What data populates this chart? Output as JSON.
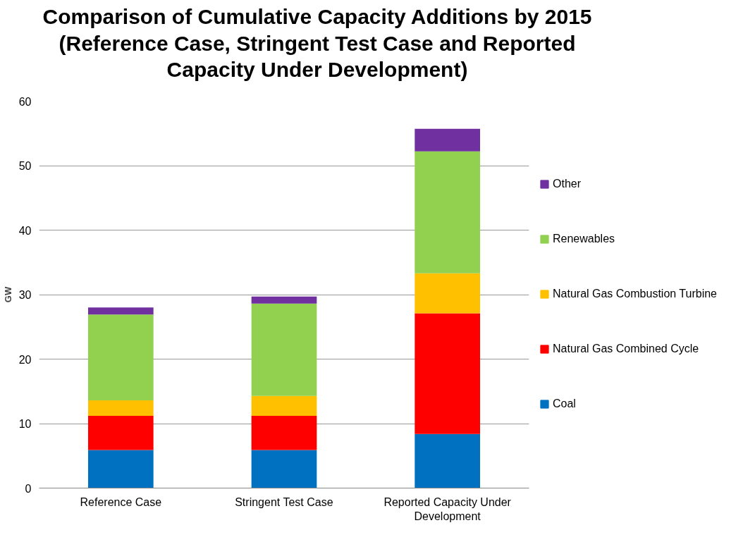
{
  "chart_data": {
    "type": "bar",
    "title": "Comparison of Cumulative Capacity Additions by 2015\n(Reference Case, Stringent Test Case and Reported\nCapacity Under Development)",
    "ylabel": "GW",
    "categories": [
      "Reference Case",
      "Stringent Test Case",
      "Reported Capacity Under Development"
    ],
    "stacked": true,
    "series": [
      {
        "name": "Coal",
        "color": "#0070c0",
        "values": [
          5.9,
          5.9,
          8.4
        ]
      },
      {
        "name": "Natural Gas Combined Cycle",
        "color": "#ff0000",
        "values": [
          5.3,
          5.3,
          18.7
        ]
      },
      {
        "name": "Natural Gas Combustion Turbine",
        "color": "#ffc000",
        "values": [
          2.4,
          3.1,
          6.2
        ]
      },
      {
        "name": "Renewables",
        "color": "#92d050",
        "values": [
          13.3,
          14.3,
          18.9
        ]
      },
      {
        "name": "Other",
        "color": "#7030a0",
        "values": [
          1.1,
          1.1,
          3.5
        ]
      }
    ],
    "ylim": [
      0,
      60
    ],
    "yticks": [
      0,
      10,
      20,
      30,
      40,
      50,
      60
    ],
    "grid": "y",
    "legend": "right"
  }
}
